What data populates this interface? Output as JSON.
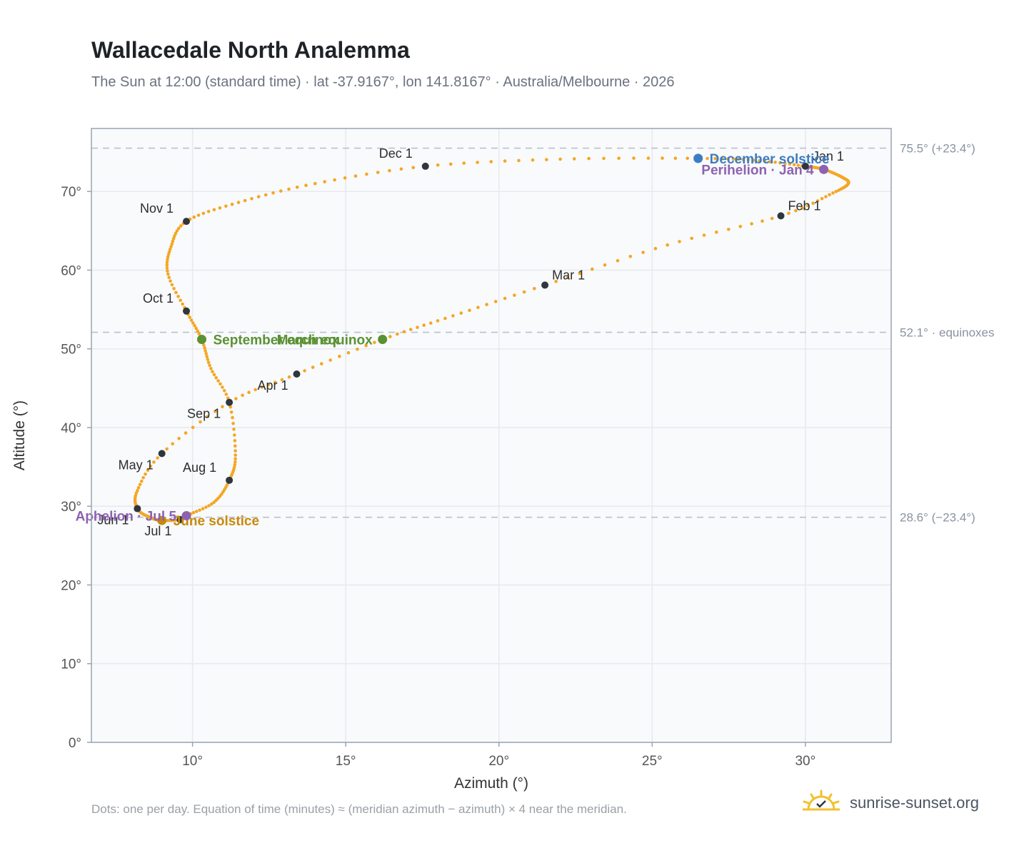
{
  "header": {
    "title": "Wallacedale North Analemma",
    "subtitle": "The Sun at 12:00 (standard time) · lat -37.9167°, lon 141.8167° · Australia/Melbourne · 2026"
  },
  "footer": {
    "note": "Dots: one per day. Equation of time (minutes) ≈ (meridian azimuth − azimuth) × 4 near the meridian.",
    "brand": "sunrise-sunset.org"
  },
  "colors": {
    "curve": "#f5a623",
    "month_dot": "#2f3640",
    "equinox": "#5a9132",
    "june_solstice": "#c8890a",
    "december_solstice": "#3d7cc2",
    "apsis": "#8e62b0",
    "grid": "#e6e9ee",
    "plot_bg": "#f8fafc",
    "ref_line": "#b9c2cf"
  },
  "chart_data": {
    "type": "scatter",
    "title": "Wallacedale North Analemma",
    "xlabel": "Azimuth (°)",
    "ylabel": "Altitude (°)",
    "xlim": [
      6.7,
      32.8
    ],
    "ylim": [
      0,
      78
    ],
    "x_ticks": [
      10,
      15,
      20,
      25,
      30
    ],
    "x_tick_labels": [
      "10°",
      "15°",
      "20°",
      "25°",
      "30°"
    ],
    "y_ticks": [
      0,
      10,
      20,
      30,
      40,
      50,
      60,
      70
    ],
    "y_tick_labels": [
      "0°",
      "10°",
      "20°",
      "30°",
      "40°",
      "50°",
      "60°",
      "70°"
    ],
    "grid": true,
    "reference_lines": [
      {
        "y": 75.5,
        "label": "75.5° (+23.4°)"
      },
      {
        "y": 52.1,
        "label": "52.1° · equinoxes"
      },
      {
        "y": 28.6,
        "label": "28.6° (−23.4°)"
      }
    ],
    "daily_path": [
      {
        "x": 30.0,
        "y": 73.2
      },
      {
        "x": 30.6,
        "y": 72.8
      },
      {
        "x": 31.2,
        "y": 71.8
      },
      {
        "x": 31.4,
        "y": 71.0
      },
      {
        "x": 30.9,
        "y": 69.8
      },
      {
        "x": 29.2,
        "y": 66.9
      },
      {
        "x": 25.5,
        "y": 63.2
      },
      {
        "x": 21.5,
        "y": 58.1
      },
      {
        "x": 18.5,
        "y": 54.2
      },
      {
        "x": 16.2,
        "y": 51.2
      },
      {
        "x": 13.4,
        "y": 46.8
      },
      {
        "x": 11.2,
        "y": 43.2
      },
      {
        "x": 9.0,
        "y": 36.7
      },
      {
        "x": 8.2,
        "y": 32.0
      },
      {
        "x": 8.2,
        "y": 29.7
      },
      {
        "x": 8.6,
        "y": 28.6
      },
      {
        "x": 9.0,
        "y": 28.2
      },
      {
        "x": 9.6,
        "y": 28.3
      },
      {
        "x": 9.8,
        "y": 28.8
      },
      {
        "x": 10.7,
        "y": 30.5
      },
      {
        "x": 11.2,
        "y": 33.3
      },
      {
        "x": 11.4,
        "y": 36.5
      },
      {
        "x": 11.2,
        "y": 43.2
      },
      {
        "x": 10.6,
        "y": 47.5
      },
      {
        "x": 10.3,
        "y": 51.2
      },
      {
        "x": 9.8,
        "y": 54.8
      },
      {
        "x": 9.2,
        "y": 59.5
      },
      {
        "x": 9.3,
        "y": 63.0
      },
      {
        "x": 9.8,
        "y": 66.2
      },
      {
        "x": 11.5,
        "y": 68.6
      },
      {
        "x": 14.0,
        "y": 71.0
      },
      {
        "x": 17.6,
        "y": 73.2
      },
      {
        "x": 22.0,
        "y": 74.1
      },
      {
        "x": 26.5,
        "y": 74.2
      },
      {
        "x": 28.5,
        "y": 73.9
      },
      {
        "x": 30.0,
        "y": 73.2
      }
    ],
    "month_markers": [
      {
        "label": "Jan 1",
        "x": 30.0,
        "y": 73.2,
        "label_pos": "above-right"
      },
      {
        "label": "Feb 1",
        "x": 29.2,
        "y": 66.9,
        "label_pos": "above-right"
      },
      {
        "label": "Mar 1",
        "x": 21.5,
        "y": 58.1,
        "label_pos": "above-right"
      },
      {
        "label": "Apr 1",
        "x": 13.4,
        "y": 46.8,
        "label_pos": "below-left"
      },
      {
        "label": "May 1",
        "x": 9.0,
        "y": 36.7,
        "label_pos": "below-left"
      },
      {
        "label": "Jun 1",
        "x": 8.2,
        "y": 29.7,
        "label_pos": "below-left"
      },
      {
        "label": "Jul 1",
        "x": 9.6,
        "y": 28.3,
        "label_pos": "below-left"
      },
      {
        "label": "Aug 1",
        "x": 11.2,
        "y": 33.3,
        "label_pos": "above-left"
      },
      {
        "label": "Sep 1",
        "x": 11.2,
        "y": 43.2,
        "label_pos": "below-left"
      },
      {
        "label": "Oct 1",
        "x": 9.8,
        "y": 54.8,
        "label_pos": "above-left"
      },
      {
        "label": "Nov 1",
        "x": 9.8,
        "y": 66.2,
        "label_pos": "above-left"
      },
      {
        "label": "Dec 1",
        "x": 17.6,
        "y": 73.2,
        "label_pos": "above-left"
      }
    ],
    "events": [
      {
        "label": "March equinox",
        "x": 16.2,
        "y": 51.2,
        "color": "#5a9132",
        "label_pos": "left"
      },
      {
        "label": "September equinox",
        "x": 10.3,
        "y": 51.2,
        "color": "#5a9132",
        "label_pos": "right"
      },
      {
        "label": "June solstice",
        "x": 9.0,
        "y": 28.2,
        "color": "#c8890a",
        "label_pos": "right"
      },
      {
        "label": "December solstice",
        "x": 26.5,
        "y": 74.2,
        "color": "#3d7cc2",
        "label_pos": "right"
      },
      {
        "label": "Perihelion · Jan 4",
        "x": 30.6,
        "y": 72.8,
        "color": "#8e62b0",
        "label_pos": "left"
      },
      {
        "label": "Aphelion · Jul 5",
        "x": 9.8,
        "y": 28.8,
        "color": "#8e62b0",
        "label_pos": "left"
      }
    ]
  }
}
